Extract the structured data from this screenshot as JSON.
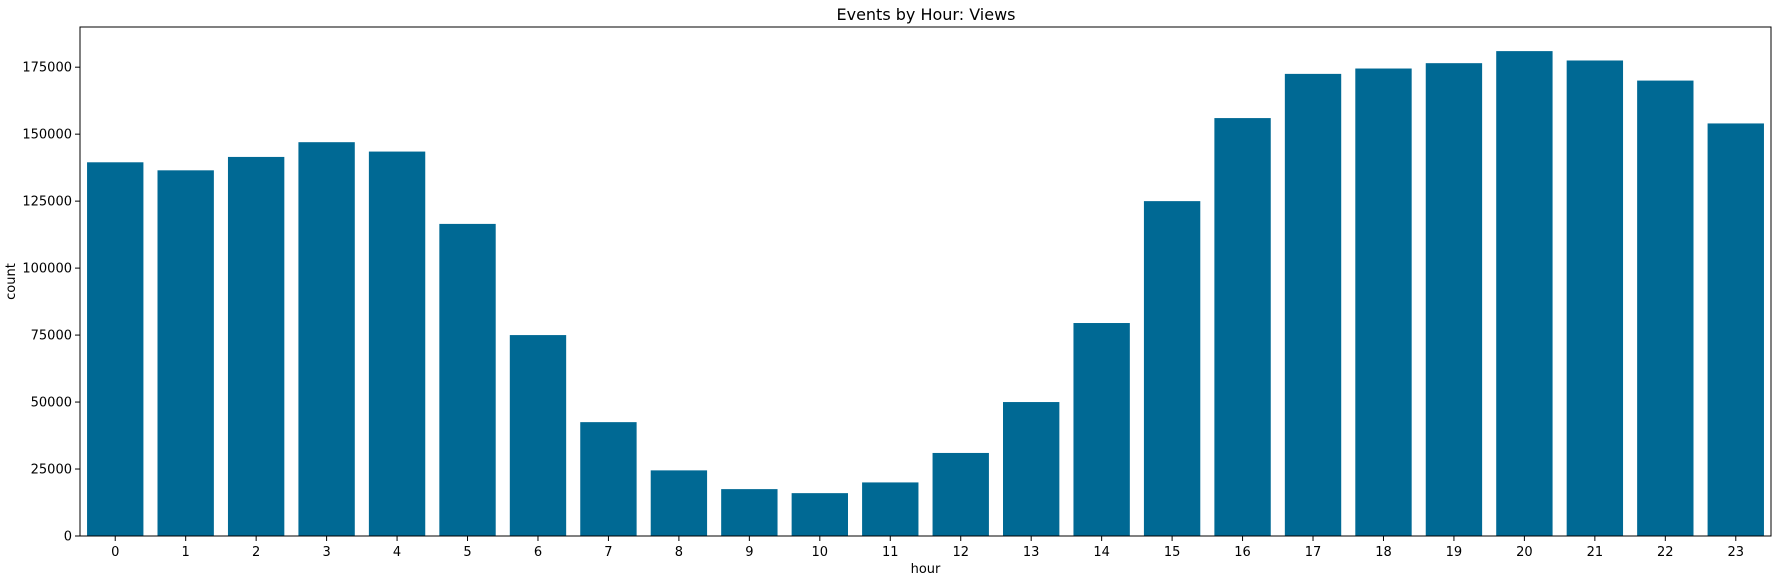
{
  "chart_data": {
    "type": "bar",
    "title": "Events by Hour: Views",
    "xlabel": "hour",
    "ylabel": "count",
    "categories": [
      "0",
      "1",
      "2",
      "3",
      "4",
      "5",
      "6",
      "7",
      "8",
      "9",
      "10",
      "11",
      "12",
      "13",
      "14",
      "15",
      "16",
      "17",
      "18",
      "19",
      "20",
      "21",
      "22",
      "23"
    ],
    "values": [
      139500,
      136500,
      141500,
      147000,
      143500,
      116500,
      75000,
      42500,
      24500,
      17500,
      16000,
      20000,
      31000,
      50000,
      79500,
      125000,
      156000,
      172500,
      174500,
      176500,
      181000,
      177500,
      170000,
      154000
    ],
    "ylim": [
      0,
      190000
    ],
    "yticks": [
      0,
      25000,
      50000,
      75000,
      100000,
      125000,
      150000,
      175000
    ],
    "grid": false,
    "bar_color": "#006994"
  }
}
